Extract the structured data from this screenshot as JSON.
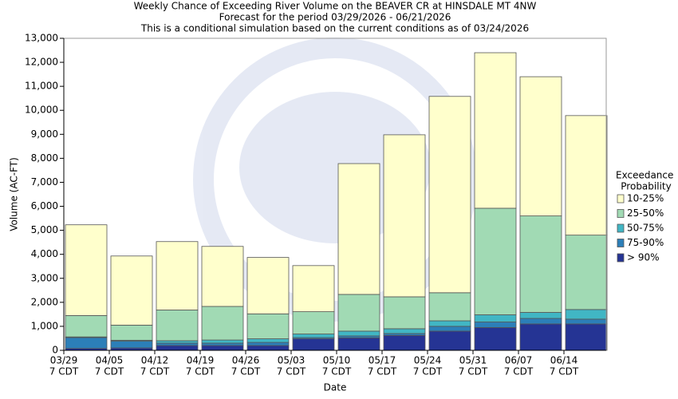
{
  "chart_data": {
    "type": "stacked_bar",
    "title": [
      "Weekly Chance of Exceeding River Volume on the BEAVER CR at HINSDALE MT 4NW",
      "Forecast for the period 03/29/2026 - 06/21/2026",
      "This is a conditional simulation based on the current conditions as of 03/24/2026"
    ],
    "x_label": "Date",
    "y_label": "Volume (AC-FT)",
    "categories": [
      "03/29",
      "04/05",
      "04/12",
      "04/19",
      "04/26",
      "05/03",
      "05/10",
      "05/17",
      "05/24",
      "05/31",
      "06/07",
      "06/14"
    ],
    "category_note": "7 CDT",
    "legend_title": [
      "Exceedance",
      "Probability"
    ],
    "legend_position": "right",
    "grid": false,
    "ylim": [
      0,
      13000
    ],
    "yticks": [
      0,
      {
        "value": 1000,
        "label": "1,000"
      },
      {
        "value": 2000,
        "label": "2,000"
      },
      {
        "value": 3000,
        "label": "3,000"
      },
      {
        "value": 4000,
        "label": "4,000"
      },
      {
        "value": 5000,
        "label": "5,000"
      },
      {
        "value": 6000,
        "label": "6,000"
      },
      {
        "value": 7000,
        "label": "7,000"
      },
      {
        "value": 8000,
        "label": "8,000"
      },
      {
        "value": 9000,
        "label": "9,000"
      },
      {
        "value": 10000,
        "label": "10,000"
      },
      {
        "value": 11000,
        "label": "11,000"
      },
      {
        "value": 12000,
        "label": "12,000"
      },
      {
        "value": 13000,
        "label": "13,000"
      }
    ],
    "series": [
      {
        "name": "> 90%",
        "color": "#253494",
        "values": [
          80,
          100,
          200,
          200,
          200,
          480,
          520,
          620,
          800,
          950,
          1100,
          1100
        ]
      },
      {
        "name": "75-90%",
        "color": "#2c7fb8",
        "values": [
          450,
          280,
          100,
          100,
          130,
          50,
          80,
          80,
          200,
          230,
          230,
          200
        ]
      },
      {
        "name": "50-75%",
        "color": "#41b6c4",
        "values": [
          30,
          40,
          100,
          130,
          150,
          150,
          200,
          200,
          230,
          300,
          250,
          400
        ]
      },
      {
        "name": "25-50%",
        "color": "#a1dab4",
        "values": [
          890,
          630,
          1280,
          1400,
          1040,
          930,
          1530,
          1330,
          1170,
          4440,
          4020,
          3100
        ]
      },
      {
        "name": "10-25%",
        "color": "#ffffcc",
        "values": [
          3780,
          2880,
          2850,
          2500,
          2350,
          1920,
          5450,
          6750,
          8180,
          6480,
          5800,
          4980
        ]
      }
    ]
  }
}
